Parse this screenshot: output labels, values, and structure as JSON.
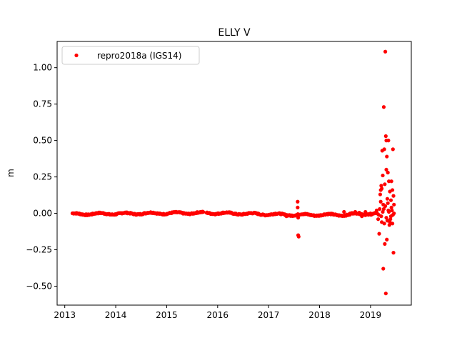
{
  "chart_data": {
    "type": "scatter",
    "title": "ELLY V",
    "xlabel": "",
    "ylabel": "m",
    "xlim": [
      2012.85,
      2019.8
    ],
    "ylim": [
      -0.63,
      1.18
    ],
    "x_ticks": [
      2013,
      2014,
      2015,
      2016,
      2017,
      2018,
      2019
    ],
    "x_tick_labels": [
      "2013",
      "2014",
      "2015",
      "2016",
      "2017",
      "2018",
      "2019"
    ],
    "y_ticks": [
      -0.5,
      -0.25,
      0.0,
      0.25,
      0.5,
      0.75,
      1.0
    ],
    "y_tick_labels": [
      "−0.50",
      "−0.25",
      "0.00",
      "0.25",
      "0.50",
      "0.75",
      "1.00"
    ],
    "grid": false,
    "legend_position": "top-left",
    "series": [
      {
        "name": "repro2018a (IGS14)",
        "color": "#ff0000",
        "marker": "circle",
        "dense_segments": [
          {
            "x_start": 2013.15,
            "x_end": 2015.72,
            "y_start": -0.005,
            "y_end": 0.003,
            "step": 0.012
          },
          {
            "x_start": 2015.78,
            "x_end": 2017.55,
            "y_start": 0.003,
            "y_end": -0.01,
            "step": 0.012
          },
          {
            "x_start": 2017.55,
            "x_end": 2018.6,
            "y_start": -0.01,
            "y_end": -0.01,
            "step": 0.012
          },
          {
            "x_start": 2018.6,
            "x_end": 2019.12,
            "y_start": -0.005,
            "y_end": -0.002,
            "step": 0.012
          }
        ],
        "points": [
          {
            "x": 2017.57,
            "y": 0.08
          },
          {
            "x": 2017.57,
            "y": 0.04
          },
          {
            "x": 2017.58,
            "y": -0.03
          },
          {
            "x": 2017.58,
            "y": -0.15
          },
          {
            "x": 2017.59,
            "y": -0.16
          },
          {
            "x": 2017.35,
            "y": -0.02
          },
          {
            "x": 2018.48,
            "y": 0.01
          },
          {
            "x": 2018.53,
            "y": -0.01
          },
          {
            "x": 2018.62,
            "y": 0.0
          },
          {
            "x": 2018.7,
            "y": 0.01
          },
          {
            "x": 2018.78,
            "y": 0.005
          },
          {
            "x": 2018.83,
            "y": -0.02
          },
          {
            "x": 2018.9,
            "y": 0.01
          },
          {
            "x": 2019.0,
            "y": 0.0
          },
          {
            "x": 2019.12,
            "y": 0.02
          },
          {
            "x": 2019.15,
            "y": -0.04
          },
          {
            "x": 2019.17,
            "y": -0.14
          },
          {
            "x": 2019.19,
            "y": 0.13
          },
          {
            "x": 2019.2,
            "y": 0.16
          },
          {
            "x": 2019.21,
            "y": 0.19
          },
          {
            "x": 2019.22,
            "y": 0.17
          },
          {
            "x": 2019.23,
            "y": 0.43
          },
          {
            "x": 2019.24,
            "y": 0.26
          },
          {
            "x": 2019.25,
            "y": 0.06
          },
          {
            "x": 2019.25,
            "y": -0.38
          },
          {
            "x": 2019.26,
            "y": 0.73
          },
          {
            "x": 2019.27,
            "y": 0.44
          },
          {
            "x": 2019.28,
            "y": 0.2
          },
          {
            "x": 2019.28,
            "y": -0.21
          },
          {
            "x": 2019.29,
            "y": 1.11
          },
          {
            "x": 2019.3,
            "y": 0.53
          },
          {
            "x": 2019.3,
            "y": -0.55
          },
          {
            "x": 2019.31,
            "y": 0.3
          },
          {
            "x": 2019.31,
            "y": 0.5
          },
          {
            "x": 2019.32,
            "y": 0.39
          },
          {
            "x": 2019.32,
            "y": -0.18
          },
          {
            "x": 2019.33,
            "y": 0.1
          },
          {
            "x": 2019.34,
            "y": 0.28
          },
          {
            "x": 2019.35,
            "y": 0.5
          },
          {
            "x": 2019.36,
            "y": 0.22
          },
          {
            "x": 2019.37,
            "y": -0.08
          },
          {
            "x": 2019.38,
            "y": 0.15
          },
          {
            "x": 2019.4,
            "y": 0.09
          },
          {
            "x": 2019.41,
            "y": 0.22
          },
          {
            "x": 2019.43,
            "y": 0.16
          },
          {
            "x": 2019.43,
            "y": -0.07
          },
          {
            "x": 2019.44,
            "y": 0.44
          },
          {
            "x": 2019.45,
            "y": 0.12
          },
          {
            "x": 2019.45,
            "y": -0.27
          },
          {
            "x": 2019.46,
            "y": 0.06
          },
          {
            "x": 2019.22,
            "y": -0.06
          },
          {
            "x": 2019.27,
            "y": -0.07
          },
          {
            "x": 2019.33,
            "y": -0.05
          },
          {
            "x": 2019.38,
            "y": -0.06
          },
          {
            "x": 2019.41,
            "y": 0.04
          },
          {
            "x": 2019.18,
            "y": 0.03
          },
          {
            "x": 2019.24,
            "y": 0.01
          },
          {
            "x": 2019.29,
            "y": 0.05
          },
          {
            "x": 2019.35,
            "y": 0.02
          },
          {
            "x": 2019.4,
            "y": -0.02
          },
          {
            "x": 2019.44,
            "y": -0.01
          },
          {
            "x": 2019.46,
            "y": 0.0
          },
          {
            "x": 2019.13,
            "y": 0.0
          },
          {
            "x": 2019.16,
            "y": -0.01
          },
          {
            "x": 2019.21,
            "y": -0.02
          },
          {
            "x": 2019.26,
            "y": 0.03
          },
          {
            "x": 2019.31,
            "y": -0.03
          },
          {
            "x": 2019.36,
            "y": 0.01
          },
          {
            "x": 2019.39,
            "y": -0.04
          },
          {
            "x": 2019.42,
            "y": 0.02
          },
          {
            "x": 2019.2,
            "y": 0.08
          },
          {
            "x": 2019.34,
            "y": 0.07
          }
        ]
      }
    ]
  }
}
